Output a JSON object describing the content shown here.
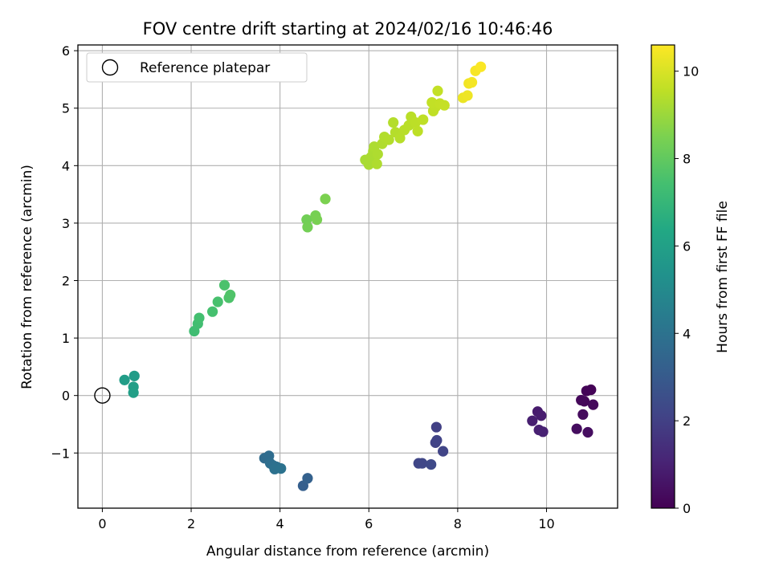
{
  "chart_data": {
    "type": "scatter",
    "title": "FOV centre drift starting at 2024/02/16 10:46:46",
    "xlabel": "Angular distance from reference (arcmin)",
    "ylabel": "Rotation from reference (arcmin)",
    "xlim": [
      -0.55,
      11.6
    ],
    "ylim": [
      -1.96,
      6.1
    ],
    "xticks": [
      0,
      2,
      4,
      6,
      8,
      10
    ],
    "yticks": [
      -1,
      0,
      1,
      2,
      3,
      4,
      5,
      6
    ],
    "grid": true,
    "legend": {
      "position": "top-left",
      "entries": [
        "Reference platepar"
      ]
    },
    "reference_point": {
      "x": 0,
      "y": 0
    },
    "colorbar": {
      "label": "Hours from first FF file",
      "colormap": "viridis",
      "range": [
        0,
        10.6
      ],
      "ticks": [
        0,
        2,
        4,
        6,
        8,
        10
      ]
    },
    "points": [
      {
        "x": 11.0,
        "y": 0.1,
        "h": 0.05
      },
      {
        "x": 10.9,
        "y": 0.08,
        "h": 0.1
      },
      {
        "x": 10.85,
        "y": -0.1,
        "h": 0.15
      },
      {
        "x": 10.78,
        "y": -0.08,
        "h": 0.2
      },
      {
        "x": 11.05,
        "y": -0.16,
        "h": 0.25
      },
      {
        "x": 10.82,
        "y": -0.33,
        "h": 0.3
      },
      {
        "x": 10.68,
        "y": -0.58,
        "h": 0.35
      },
      {
        "x": 10.93,
        "y": -0.64,
        "h": 0.4
      },
      {
        "x": 9.8,
        "y": -0.28,
        "h": 0.8
      },
      {
        "x": 9.88,
        "y": -0.35,
        "h": 0.85
      },
      {
        "x": 9.68,
        "y": -0.44,
        "h": 0.9
      },
      {
        "x": 9.83,
        "y": -0.6,
        "h": 0.95
      },
      {
        "x": 9.92,
        "y": -0.63,
        "h": 1.0
      },
      {
        "x": 7.52,
        "y": -0.55,
        "h": 2.0
      },
      {
        "x": 7.5,
        "y": -0.82,
        "h": 2.05
      },
      {
        "x": 7.53,
        "y": -0.78,
        "h": 2.1
      },
      {
        "x": 7.67,
        "y": -0.97,
        "h": 2.15
      },
      {
        "x": 7.12,
        "y": -1.18,
        "h": 2.2
      },
      {
        "x": 7.2,
        "y": -1.18,
        "h": 2.25
      },
      {
        "x": 7.4,
        "y": -1.2,
        "h": 2.3
      },
      {
        "x": 4.52,
        "y": -1.57,
        "h": 3.2
      },
      {
        "x": 4.62,
        "y": -1.44,
        "h": 3.25
      },
      {
        "x": 3.65,
        "y": -1.09,
        "h": 3.7
      },
      {
        "x": 3.75,
        "y": -1.05,
        "h": 3.75
      },
      {
        "x": 3.78,
        "y": -1.18,
        "h": 3.8
      },
      {
        "x": 3.85,
        "y": -1.22,
        "h": 3.85
      },
      {
        "x": 3.92,
        "y": -1.24,
        "h": 3.9
      },
      {
        "x": 3.88,
        "y": -1.28,
        "h": 3.95
      },
      {
        "x": 4.02,
        "y": -1.27,
        "h": 4.0
      },
      {
        "x": 0.72,
        "y": 0.34,
        "h": 5.8
      },
      {
        "x": 0.5,
        "y": 0.27,
        "h": 5.85
      },
      {
        "x": 0.7,
        "y": 0.15,
        "h": 5.9
      },
      {
        "x": 0.7,
        "y": 0.05,
        "h": 5.95
      },
      {
        "x": 2.07,
        "y": 1.12,
        "h": 7.3
      },
      {
        "x": 2.15,
        "y": 1.25,
        "h": 7.35
      },
      {
        "x": 2.18,
        "y": 1.35,
        "h": 7.4
      },
      {
        "x": 2.48,
        "y": 1.46,
        "h": 7.45
      },
      {
        "x": 2.6,
        "y": 1.63,
        "h": 7.5
      },
      {
        "x": 2.75,
        "y": 1.92,
        "h": 7.55
      },
      {
        "x": 2.85,
        "y": 1.7,
        "h": 7.6
      },
      {
        "x": 2.88,
        "y": 1.75,
        "h": 7.65
      },
      {
        "x": 4.6,
        "y": 3.06,
        "h": 8.3
      },
      {
        "x": 4.62,
        "y": 2.93,
        "h": 8.35
      },
      {
        "x": 4.8,
        "y": 3.13,
        "h": 8.4
      },
      {
        "x": 4.83,
        "y": 3.06,
        "h": 8.45
      },
      {
        "x": 5.02,
        "y": 3.42,
        "h": 8.5
      },
      {
        "x": 5.92,
        "y": 4.1,
        "h": 9.2
      },
      {
        "x": 6.0,
        "y": 4.02,
        "h": 9.22
      },
      {
        "x": 6.05,
        "y": 4.15,
        "h": 9.24
      },
      {
        "x": 6.1,
        "y": 4.25,
        "h": 9.26
      },
      {
        "x": 6.12,
        "y": 4.33,
        "h": 9.28
      },
      {
        "x": 6.2,
        "y": 4.2,
        "h": 9.3
      },
      {
        "x": 6.18,
        "y": 4.03,
        "h": 9.32
      },
      {
        "x": 6.3,
        "y": 4.38,
        "h": 9.34
      },
      {
        "x": 6.35,
        "y": 4.5,
        "h": 9.36
      },
      {
        "x": 6.45,
        "y": 4.45,
        "h": 9.38
      },
      {
        "x": 6.55,
        "y": 4.75,
        "h": 9.4
      },
      {
        "x": 6.6,
        "y": 4.58,
        "h": 9.42
      },
      {
        "x": 6.7,
        "y": 4.48,
        "h": 9.44
      },
      {
        "x": 6.8,
        "y": 4.62,
        "h": 9.46
      },
      {
        "x": 6.9,
        "y": 4.7,
        "h": 9.48
      },
      {
        "x": 6.95,
        "y": 4.85,
        "h": 9.5
      },
      {
        "x": 7.05,
        "y": 4.75,
        "h": 9.52
      },
      {
        "x": 7.1,
        "y": 4.6,
        "h": 9.54
      },
      {
        "x": 7.22,
        "y": 4.8,
        "h": 9.56
      },
      {
        "x": 7.45,
        "y": 4.95,
        "h": 9.58
      },
      {
        "x": 7.5,
        "y": 5.02,
        "h": 9.6
      },
      {
        "x": 7.42,
        "y": 5.1,
        "h": 9.62
      },
      {
        "x": 7.55,
        "y": 5.3,
        "h": 9.64
      },
      {
        "x": 7.6,
        "y": 5.08,
        "h": 9.66
      },
      {
        "x": 7.7,
        "y": 5.05,
        "h": 9.68
      },
      {
        "x": 8.12,
        "y": 5.18,
        "h": 10.3
      },
      {
        "x": 8.22,
        "y": 5.22,
        "h": 10.35
      },
      {
        "x": 8.25,
        "y": 5.43,
        "h": 10.4
      },
      {
        "x": 8.32,
        "y": 5.45,
        "h": 10.45
      },
      {
        "x": 8.4,
        "y": 5.65,
        "h": 10.5
      },
      {
        "x": 8.52,
        "y": 5.72,
        "h": 10.55
      }
    ]
  }
}
